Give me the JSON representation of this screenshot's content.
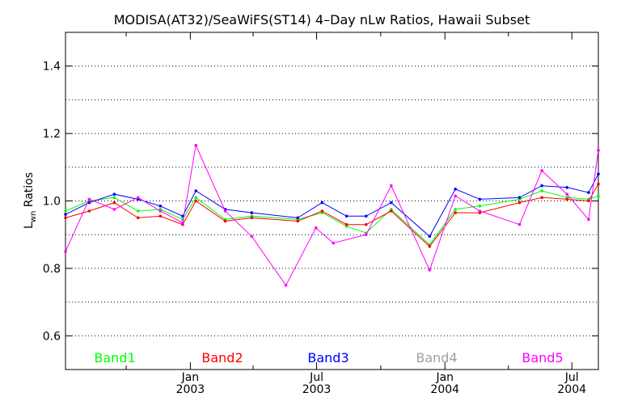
{
  "chart_data": {
    "type": "line",
    "title": "MODISA(AT32)/SeaWiFS(ST14) 4–Day nLw Ratios, Hawaii Subset",
    "ylabel": {
      "main": "L",
      "sub": "wn",
      "rest": " Ratios"
    },
    "xlabel": "",
    "ylim": [
      0.5,
      1.5
    ],
    "y_ticks": [
      0.6,
      0.8,
      1.0,
      1.2,
      1.4
    ],
    "y_tick_labels": [
      "0.6",
      "0.8",
      "1.0",
      "1.2",
      "1.4"
    ],
    "y_grid": [
      0.6,
      0.7,
      0.8,
      0.9,
      1.0,
      1.1,
      1.2,
      1.3,
      1.4
    ],
    "xlim": [
      "2002-07-06",
      "2004-08-08"
    ],
    "x_ticks": [
      {
        "date": "2003-01-01",
        "month": "Jan",
        "year": "2003"
      },
      {
        "date": "2003-07-01",
        "month": "Jul",
        "year": "2003"
      },
      {
        "date": "2004-01-01",
        "month": "Jan",
        "year": "2004"
      },
      {
        "date": "2004-07-01",
        "month": "Jul",
        "year": "2004"
      }
    ],
    "x_minor_ticks": [
      "2002-10-01",
      "2003-04-01",
      "2003-10-01",
      "2004-04-01"
    ],
    "grid": true,
    "legend_position": "bottom",
    "series": [
      {
        "name": "Band1",
        "color": "#00ff00",
        "x": [
          "2002-07-06",
          "2002-08-09",
          "2002-09-14",
          "2002-10-18",
          "2002-11-19",
          "2002-12-21",
          "2003-01-09",
          "2003-02-20",
          "2003-03-30",
          "2003-06-04",
          "2003-07-09",
          "2003-08-13",
          "2003-09-10",
          "2003-10-16",
          "2003-12-10",
          "2004-01-16",
          "2004-02-20",
          "2004-04-17",
          "2004-05-19",
          "2004-06-24",
          "2004-07-25",
          "2004-08-08"
        ],
        "values": [
          0.97,
          1.0,
          1.01,
          0.97,
          0.975,
          0.945,
          1.01,
          0.945,
          0.955,
          0.945,
          0.965,
          0.925,
          0.905,
          0.975,
          0.87,
          0.975,
          0.985,
          1.005,
          1.03,
          1.01,
          1.005,
          1.015
        ]
      },
      {
        "name": "Band2",
        "color": "#ff0000",
        "x": [
          "2002-07-06",
          "2002-08-09",
          "2002-09-14",
          "2002-10-18",
          "2002-11-19",
          "2002-12-21",
          "2003-01-09",
          "2003-02-20",
          "2003-03-30",
          "2003-06-04",
          "2003-07-09",
          "2003-08-13",
          "2003-09-10",
          "2003-10-16",
          "2003-12-10",
          "2004-01-16",
          "2004-02-20",
          "2004-04-17",
          "2004-05-19",
          "2004-06-24",
          "2004-07-25",
          "2004-08-08"
        ],
        "values": [
          0.95,
          0.97,
          0.995,
          0.95,
          0.955,
          0.93,
          1.0,
          0.94,
          0.95,
          0.94,
          0.97,
          0.93,
          0.93,
          0.97,
          0.865,
          0.965,
          0.965,
          0.995,
          1.01,
          1.005,
          1.0,
          1.05
        ]
      },
      {
        "name": "Band3",
        "color": "#0000ff",
        "x": [
          "2002-07-06",
          "2002-08-09",
          "2002-09-14",
          "2002-10-18",
          "2002-11-19",
          "2002-12-21",
          "2003-01-09",
          "2003-02-20",
          "2003-03-30",
          "2003-06-04",
          "2003-07-09",
          "2003-08-13",
          "2003-09-10",
          "2003-10-16",
          "2003-12-10",
          "2004-01-16",
          "2004-02-20",
          "2004-04-17",
          "2004-05-19",
          "2004-06-24",
          "2004-07-25",
          "2004-08-08"
        ],
        "values": [
          0.96,
          0.995,
          1.02,
          1.005,
          0.985,
          0.955,
          1.03,
          0.975,
          0.965,
          0.95,
          0.995,
          0.955,
          0.955,
          0.995,
          0.895,
          1.035,
          1.005,
          1.01,
          1.045,
          1.04,
          1.025,
          1.08
        ]
      },
      {
        "name": "Band4",
        "color": "#a0a0a0",
        "x": [],
        "values": []
      },
      {
        "name": "Band5",
        "color": "#ff00ff",
        "x": [
          "2002-07-06",
          "2002-08-09",
          "2002-09-14",
          "2002-10-18",
          "2002-11-19",
          "2002-12-21",
          "2003-01-09",
          "2003-02-20",
          "2003-03-30",
          "2003-05-18",
          "2003-06-30",
          "2003-07-25",
          "2003-09-10",
          "2003-10-16",
          "2003-12-10",
          "2004-01-16",
          "2004-02-20",
          "2004-04-17",
          "2004-05-19",
          "2004-06-24",
          "2004-07-25",
          "2004-08-08"
        ],
        "values": [
          0.85,
          1.005,
          0.975,
          1.01,
          0.97,
          0.935,
          1.165,
          0.97,
          0.895,
          0.75,
          0.92,
          0.875,
          0.9,
          1.045,
          0.795,
          1.015,
          0.97,
          0.93,
          1.09,
          1.02,
          0.945,
          1.15
        ]
      }
    ]
  }
}
